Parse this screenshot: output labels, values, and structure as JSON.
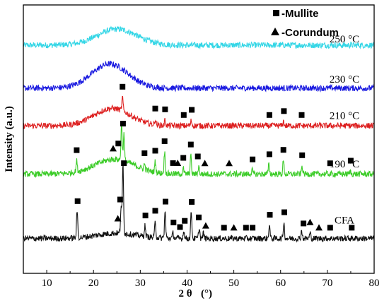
{
  "chart_data": {
    "type": "line",
    "xlabel_main": "2 θ",
    "xlabel_unit": "(°)",
    "ylabel": "Intensity (a.u.)",
    "xlim": [
      5,
      80
    ],
    "xticks": [
      10,
      20,
      30,
      40,
      50,
      60,
      70,
      80
    ],
    "legend": {
      "placement": "top-right",
      "entries": [
        {
          "marker": "square",
          "label": "-Mullite"
        },
        {
          "marker": "triangle",
          "label": "-Corundum"
        }
      ]
    },
    "series": [
      {
        "name": "250 °C",
        "color": "#33d6e6",
        "baseline_level": 0.85,
        "hump": {
          "center": 25,
          "width": 6,
          "height": 0.06
        },
        "peaks": []
      },
      {
        "name": "230 °C",
        "color": "#1a1ae0",
        "baseline_level": 0.69,
        "hump": {
          "center": 23.5,
          "width": 5.5,
          "height": 0.09
        },
        "peaks": []
      },
      {
        "name": "210 °C",
        "color": "#dd2020",
        "baseline_level": 0.55,
        "hump": {
          "center": 24,
          "width": 5.5,
          "height": 0.065
        },
        "peaks": [
          {
            "x": 26.2,
            "h": 0.05
          },
          {
            "x": 33.2,
            "h": 0.02
          },
          {
            "x": 35.3,
            "h": 0.02
          },
          {
            "x": 40.9,
            "h": 0.02
          },
          {
            "x": 60.6,
            "h": 0.015
          }
        ],
        "markers": [
          {
            "x": 26.2,
            "type": "square"
          },
          {
            "x": 33.2,
            "type": "square"
          },
          {
            "x": 35.3,
            "type": "square"
          },
          {
            "x": 39.3,
            "type": "square"
          },
          {
            "x": 41.0,
            "type": "square"
          },
          {
            "x": 57.6,
            "type": "square"
          },
          {
            "x": 60.7,
            "type": "square"
          },
          {
            "x": 64.5,
            "type": "square"
          }
        ]
      },
      {
        "name": "190 °C",
        "color": "#3ccc28",
        "baseline_level": 0.37,
        "hump": {
          "center": 24.5,
          "width": 6,
          "height": 0.055
        },
        "peaks": [
          {
            "x": 16.4,
            "h": 0.04
          },
          {
            "x": 26.0,
            "h": 0.14
          },
          {
            "x": 26.5,
            "h": 0.1
          },
          {
            "x": 30.9,
            "h": 0.02
          },
          {
            "x": 33.2,
            "h": 0.04
          },
          {
            "x": 35.2,
            "h": 0.08
          },
          {
            "x": 39.2,
            "h": 0.02
          },
          {
            "x": 40.8,
            "h": 0.07
          },
          {
            "x": 42.5,
            "h": 0.03
          },
          {
            "x": 53.9,
            "h": 0.015
          },
          {
            "x": 57.5,
            "h": 0.035
          },
          {
            "x": 60.6,
            "h": 0.05
          },
          {
            "x": 64.6,
            "h": 0.03
          },
          {
            "x": 74.9,
            "h": 0.01
          }
        ],
        "markers": [
          {
            "x": 16.4,
            "type": "square"
          },
          {
            "x": 24.2,
            "type": "triangle"
          },
          {
            "x": 25.3,
            "type": "square"
          },
          {
            "x": 26.3,
            "type": "square"
          },
          {
            "x": 30.9,
            "type": "square"
          },
          {
            "x": 33.2,
            "type": "square"
          },
          {
            "x": 35.2,
            "type": "square"
          },
          {
            "x": 37.0,
            "type": "square"
          },
          {
            "x": 38.0,
            "type": "triangle"
          },
          {
            "x": 39.2,
            "type": "square"
          },
          {
            "x": 40.8,
            "type": "square"
          },
          {
            "x": 42.3,
            "type": "square"
          },
          {
            "x": 43.8,
            "type": "triangle"
          },
          {
            "x": 49.0,
            "type": "triangle"
          },
          {
            "x": 54.0,
            "type": "square"
          },
          {
            "x": 57.6,
            "type": "square"
          },
          {
            "x": 60.6,
            "type": "square"
          },
          {
            "x": 64.6,
            "type": "square"
          },
          {
            "x": 70.6,
            "type": "square"
          },
          {
            "x": 75.0,
            "type": "square"
          }
        ]
      },
      {
        "name": "CFA",
        "color": "#111111",
        "baseline_level": 0.13,
        "hump": {
          "center": 25,
          "width": 6,
          "height": 0.02
        },
        "peaks": [
          {
            "x": 16.5,
            "h": 0.1
          },
          {
            "x": 25.9,
            "h": 0.1
          },
          {
            "x": 26.3,
            "h": 0.26
          },
          {
            "x": 31.0,
            "h": 0.04
          },
          {
            "x": 33.2,
            "h": 0.06
          },
          {
            "x": 35.3,
            "h": 0.1
          },
          {
            "x": 37.0,
            "h": 0.02
          },
          {
            "x": 39.3,
            "h": 0.03
          },
          {
            "x": 40.9,
            "h": 0.1
          },
          {
            "x": 42.6,
            "h": 0.04
          },
          {
            "x": 43.5,
            "h": 0.02
          },
          {
            "x": 57.6,
            "h": 0.05
          },
          {
            "x": 60.7,
            "h": 0.06
          },
          {
            "x": 64.5,
            "h": 0.03
          },
          {
            "x": 66.3,
            "h": 0.02
          }
        ],
        "markers": [
          {
            "x": 16.6,
            "type": "square"
          },
          {
            "x": 25.2,
            "type": "triangle"
          },
          {
            "x": 25.7,
            "type": "square"
          },
          {
            "x": 26.5,
            "type": "square"
          },
          {
            "x": 31.1,
            "type": "square"
          },
          {
            "x": 33.2,
            "type": "square"
          },
          {
            "x": 35.4,
            "type": "square"
          },
          {
            "x": 37.1,
            "type": "square"
          },
          {
            "x": 38.5,
            "type": "square"
          },
          {
            "x": 39.5,
            "type": "square"
          },
          {
            "x": 41.0,
            "type": "square"
          },
          {
            "x": 42.5,
            "type": "square"
          },
          {
            "x": 44.0,
            "type": "triangle"
          },
          {
            "x": 47.9,
            "type": "square"
          },
          {
            "x": 50.0,
            "type": "triangle"
          },
          {
            "x": 52.6,
            "type": "square"
          },
          {
            "x": 54.0,
            "type": "square"
          },
          {
            "x": 57.7,
            "type": "square"
          },
          {
            "x": 60.8,
            "type": "square"
          },
          {
            "x": 64.9,
            "type": "square"
          },
          {
            "x": 66.3,
            "type": "triangle"
          },
          {
            "x": 68.2,
            "type": "triangle"
          },
          {
            "x": 70.6,
            "type": "square"
          },
          {
            "x": 75.2,
            "type": "square"
          }
        ]
      }
    ]
  }
}
